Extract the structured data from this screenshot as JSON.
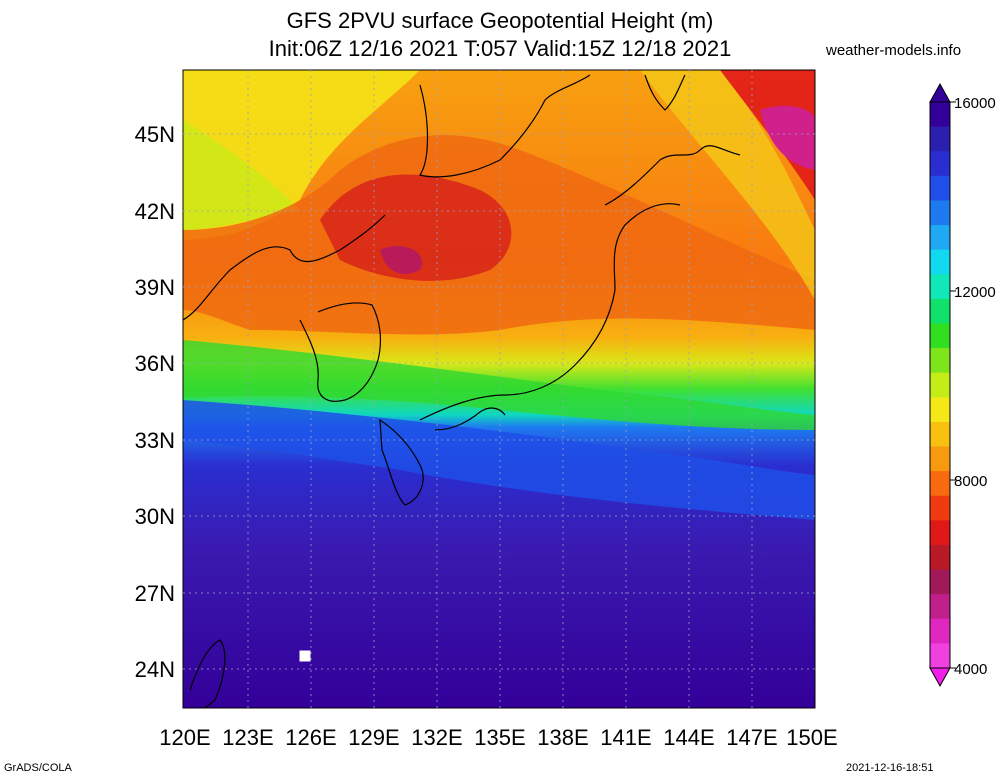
{
  "title_line1": "GFS 2PVU surface Geopotential Height (m)",
  "title_line2": "Init:06Z 12/16 2021 T:057 Valid:15Z 12/18 2021",
  "site": "weather-models.info",
  "footer_left": "GrADS/COLA",
  "footer_right": "2021-12-16-18:51",
  "lat_labels": [
    "45N",
    "42N",
    "39N",
    "36N",
    "33N",
    "30N",
    "27N",
    "24N"
  ],
  "lon_labels": [
    "120E",
    "123E",
    "126E",
    "129E",
    "132E",
    "135E",
    "138E",
    "141E",
    "144E",
    "147E",
    "150E"
  ],
  "colorbar": {
    "labels": [
      "16000",
      "12000",
      "8000",
      "4000"
    ],
    "colors": [
      "#330099",
      "#2b1fb0",
      "#2a2ed0",
      "#1f4fe8",
      "#1e7af0",
      "#1fa8f4",
      "#12d8f0",
      "#10e8b8",
      "#11e06a",
      "#30e020",
      "#7ee41c",
      "#c4ec18",
      "#f4e818",
      "#f8c010",
      "#f89a10",
      "#f86a10",
      "#f03a10",
      "#e01818",
      "#b81a28",
      "#a01a5a",
      "#c0208c",
      "#e028c0",
      "#f040e0"
    ]
  }
}
